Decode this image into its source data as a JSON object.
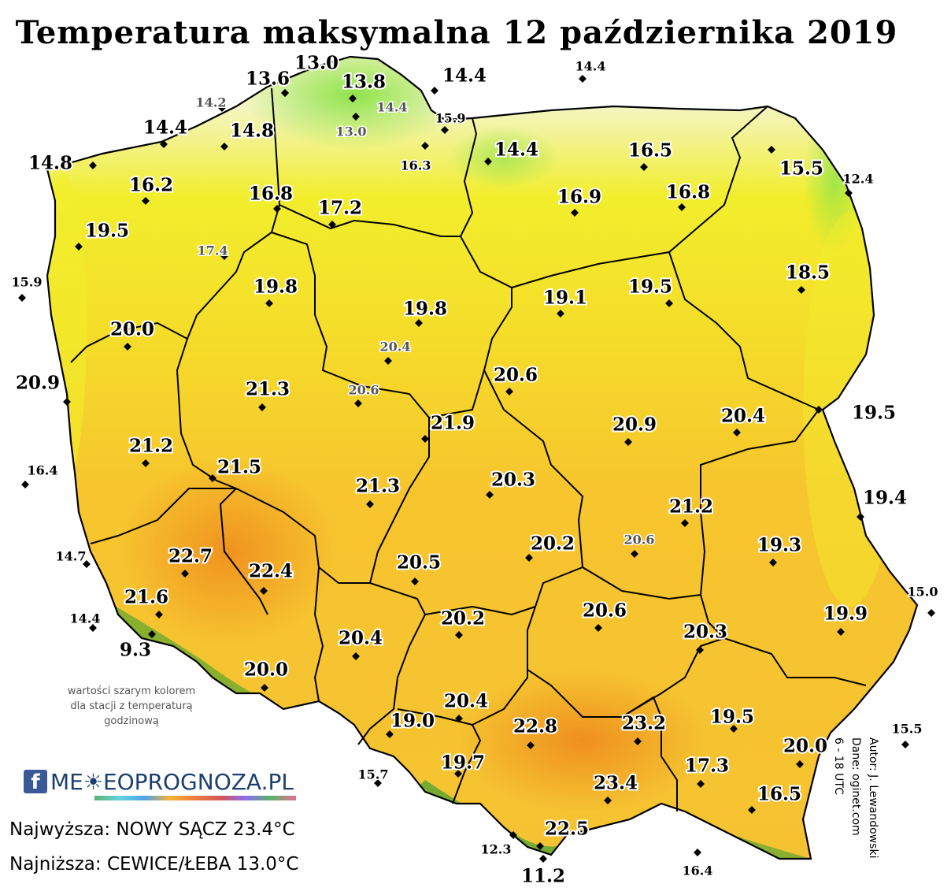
{
  "title": "Temperatura maksymalna 12 października 2019",
  "highest": "Najwyższa: NOWY SĄCZ 23.4°C",
  "lowest": "Najniższa: CEWICE/ŁEBA 13.0°C",
  "note": "wartości szarym kolorem dla stacji z temperaturą godzinową",
  "credits": {
    "author": "Autor: J. Lewandowski",
    "data": "Dane: oginet.com",
    "period": "6 - 18 UTC"
  },
  "logo": {
    "fb": "f",
    "text": "ME☀EOPROGNOZA.PL"
  },
  "colors": {
    "cold": "#8fe34a",
    "cool": "#f3f5c2",
    "mild": "#f2ee2c",
    "warm": "#f7c52e",
    "hot": "#ee8a1c",
    "mountain": "#2f9e2f",
    "border": "#000000",
    "gray_label": "#555555"
  },
  "stations": [
    {
      "v": "13.0",
      "gray": false,
      "big": true
    },
    {
      "v": "13.6",
      "gray": false,
      "big": true
    },
    {
      "v": "13.8",
      "gray": false,
      "big": true
    },
    {
      "v": "14.4",
      "gray": false,
      "big": true
    },
    {
      "v": "14.4",
      "gray": false,
      "big": false
    },
    {
      "v": "14.2",
      "gray": true,
      "big": false
    },
    {
      "v": "14.4",
      "gray": true,
      "big": false
    },
    {
      "v": "15.9",
      "gray": false,
      "big": false
    },
    {
      "v": "13.0",
      "gray": true,
      "big": false
    },
    {
      "v": "14.8",
      "gray": false,
      "big": true
    },
    {
      "v": "14.4",
      "gray": false,
      "big": true
    },
    {
      "v": "14.8",
      "gray": false,
      "big": true
    },
    {
      "v": "16.3",
      "gray": false,
      "big": false
    },
    {
      "v": "14.4",
      "gray": false,
      "big": true
    },
    {
      "v": "16.5",
      "gray": false,
      "big": true
    },
    {
      "v": "15.5",
      "gray": false,
      "big": true
    },
    {
      "v": "12.4",
      "gray": false,
      "big": false
    },
    {
      "v": "16.2",
      "gray": false,
      "big": true
    },
    {
      "v": "16.8",
      "gray": false,
      "big": true
    },
    {
      "v": "17.2",
      "gray": false,
      "big": true
    },
    {
      "v": "16.9",
      "gray": false,
      "big": true
    },
    {
      "v": "16.8",
      "gray": false,
      "big": true
    },
    {
      "v": "19.5",
      "gray": false,
      "big": true
    },
    {
      "v": "17.4",
      "gray": true,
      "big": false
    },
    {
      "v": "15.9",
      "gray": false,
      "big": false
    },
    {
      "v": "19.8",
      "gray": false,
      "big": true
    },
    {
      "v": "18.5",
      "gray": false,
      "big": true
    },
    {
      "v": "19.1",
      "gray": false,
      "big": true
    },
    {
      "v": "19.5",
      "gray": false,
      "big": true
    },
    {
      "v": "19.8",
      "gray": false,
      "big": true
    },
    {
      "v": "20.0",
      "gray": false,
      "big": true
    },
    {
      "v": "20.4",
      "gray": true,
      "big": false
    },
    {
      "v": "20.9",
      "gray": false,
      "big": true
    },
    {
      "v": "21.3",
      "gray": false,
      "big": true
    },
    {
      "v": "20.6",
      "gray": true,
      "big": false
    },
    {
      "v": "20.6",
      "gray": false,
      "big": true
    },
    {
      "v": "21.9",
      "gray": false,
      "big": true
    },
    {
      "v": "20.9",
      "gray": false,
      "big": true
    },
    {
      "v": "20.4",
      "gray": false,
      "big": true
    },
    {
      "v": "19.5",
      "gray": false,
      "big": true
    },
    {
      "v": "21.2",
      "gray": false,
      "big": true
    },
    {
      "v": "21.5",
      "gray": false,
      "big": true
    },
    {
      "v": "16.4",
      "gray": false,
      "big": false
    },
    {
      "v": "20.3",
      "gray": false,
      "big": true
    },
    {
      "v": "21.3",
      "gray": false,
      "big": true
    },
    {
      "v": "19.4",
      "gray": false,
      "big": true
    },
    {
      "v": "21.2",
      "gray": false,
      "big": true
    },
    {
      "v": "20.6",
      "gray": true,
      "big": false
    },
    {
      "v": "19.3",
      "gray": false,
      "big": true
    },
    {
      "v": "20.2",
      "gray": false,
      "big": true
    },
    {
      "v": "22.7",
      "gray": false,
      "big": true
    },
    {
      "v": "14.7",
      "gray": false,
      "big": false
    },
    {
      "v": "22.4",
      "gray": false,
      "big": true
    },
    {
      "v": "20.5",
      "gray": false,
      "big": true
    },
    {
      "v": "15.0",
      "gray": false,
      "big": false
    },
    {
      "v": "21.6",
      "gray": false,
      "big": true
    },
    {
      "v": "20.6",
      "gray": false,
      "big": true
    },
    {
      "v": "19.9",
      "gray": false,
      "big": true
    },
    {
      "v": "20.2",
      "gray": false,
      "big": true
    },
    {
      "v": "14.4",
      "gray": false,
      "big": false
    },
    {
      "v": "9.3",
      "gray": false,
      "big": true
    },
    {
      "v": "20.4",
      "gray": false,
      "big": true
    },
    {
      "v": "20.3",
      "gray": false,
      "big": true
    },
    {
      "v": "20.0",
      "gray": false,
      "big": true
    },
    {
      "v": "20.4",
      "gray": false,
      "big": true
    },
    {
      "v": "19.5",
      "gray": false,
      "big": true
    },
    {
      "v": "19.0",
      "gray": false,
      "big": true
    },
    {
      "v": "22.8",
      "gray": false,
      "big": true
    },
    {
      "v": "23.2",
      "gray": false,
      "big": true
    },
    {
      "v": "15.5",
      "gray": false,
      "big": false
    },
    {
      "v": "20.0",
      "gray": false,
      "big": true
    },
    {
      "v": "15.7",
      "gray": false,
      "big": false
    },
    {
      "v": "19.7",
      "gray": false,
      "big": true
    },
    {
      "v": "17.3",
      "gray": false,
      "big": true
    },
    {
      "v": "23.4",
      "gray": false,
      "big": true
    },
    {
      "v": "16.5",
      "gray": false,
      "big": true
    },
    {
      "v": "22.5",
      "gray": false,
      "big": true
    },
    {
      "v": "12.3",
      "gray": false,
      "big": false
    },
    {
      "v": "16.4",
      "gray": false,
      "big": false
    },
    {
      "v": "11.2",
      "gray": false,
      "big": true
    }
  ]
}
